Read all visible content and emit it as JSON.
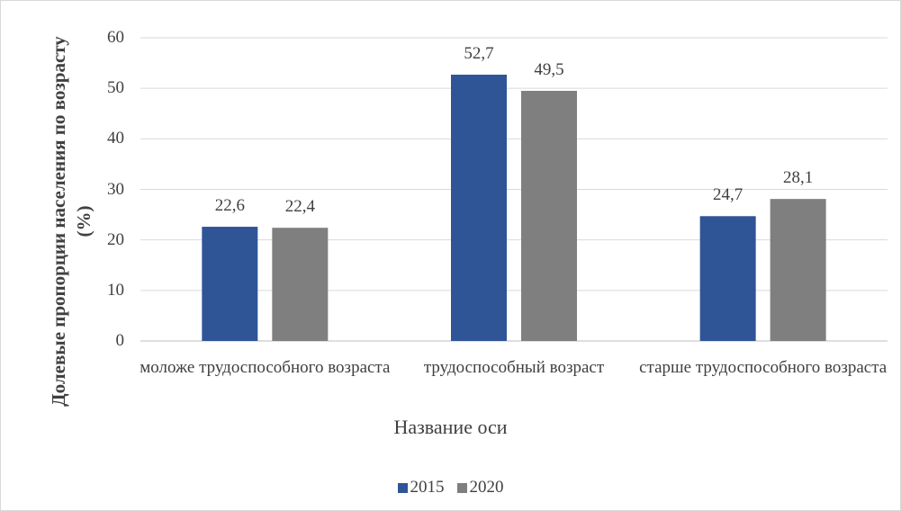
{
  "chart_data": {
    "type": "bar",
    "ylabel": "Долевые пропорции населения по возрасту (%)",
    "xlabel": "Название оси",
    "categories": [
      "моложе трудоспособного возраста",
      "трудоспособный возраст",
      "старше трудоспособного возраста"
    ],
    "series": [
      {
        "name": "2015",
        "color": "#2f5597",
        "values": [
          22.6,
          52.7,
          24.7
        ],
        "value_labels": [
          "22,6",
          "52,7",
          "24,7"
        ]
      },
      {
        "name": "2020",
        "color": "#7f7f7f",
        "values": [
          22.4,
          49.5,
          28.1
        ],
        "value_labels": [
          "22,4",
          "49,5",
          "28,1"
        ]
      }
    ],
    "ylim": [
      0,
      60
    ],
    "yticks": [
      0,
      10,
      20,
      30,
      40,
      50,
      60
    ],
    "grid": true,
    "legend": "bottom"
  }
}
